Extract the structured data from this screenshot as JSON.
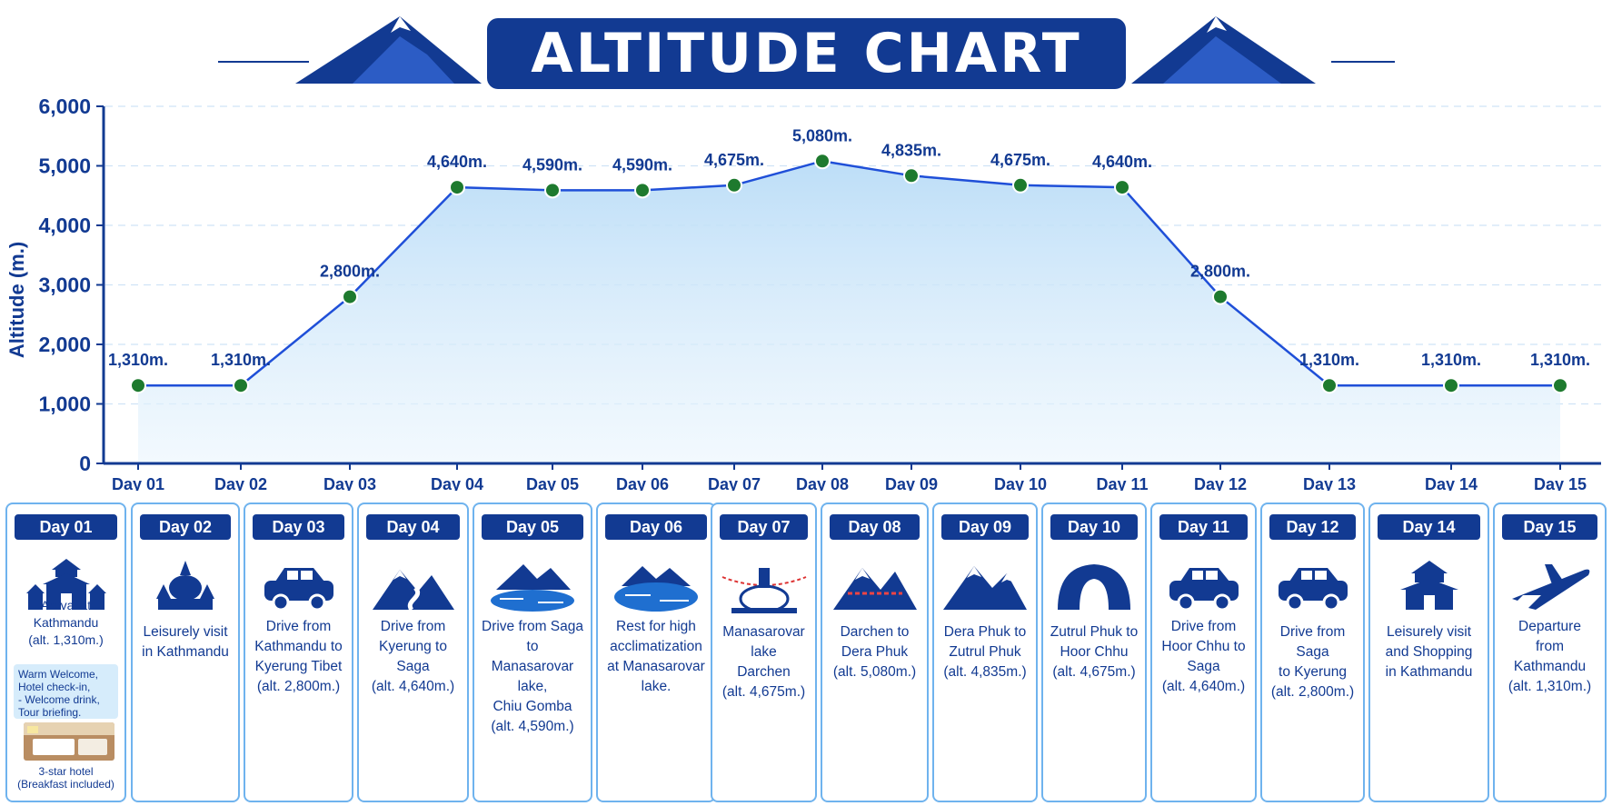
{
  "title": "ALTITUDE CHART",
  "colors": {
    "navy": "#123a92",
    "line": "#1f4fd8",
    "marker": "#1e7a2e",
    "fill": "#d7ecfb",
    "border": "#6fb3ee"
  },
  "chart_data": {
    "type": "line",
    "title": "ALTITUDE CHART",
    "xlabel": "",
    "ylabel": "Altitude (m.)",
    "ylim": [
      0,
      6000
    ],
    "yticks": [
      "0",
      "1,000",
      "2,000",
      "3,000",
      "4,000",
      "5,000",
      "6,000"
    ],
    "grid": "horizontal-dashed",
    "categories": [
      "Day 01",
      "Day 02",
      "Day 03",
      "Day 04",
      "Day 05",
      "Day 06",
      "Day 07",
      "Day 08",
      "Day 09",
      "Day 10",
      "Day 11",
      "Day 12",
      "Day 13",
      "Day 14",
      "Day 15"
    ],
    "values": [
      1310,
      1310,
      2800,
      4640,
      4590,
      4590,
      4675,
      5080,
      4835,
      4675,
      4640,
      2800,
      1310,
      1310,
      1310
    ],
    "data_labels": [
      "1,310m.",
      "1,310m.",
      "2,800m.",
      "4,640m.",
      "4,590m.",
      "4,590m.",
      "4,675m.",
      "5,080m.",
      "4,835m.",
      "4,675m.",
      "4,640m.",
      "2,800m.",
      "1,310m.",
      "1,310m.",
      "1,310m."
    ]
  },
  "days": [
    {
      "day": "Day 01",
      "icon": "kathmandu-temple-icon",
      "lines": [
        "Arrival at",
        "Kathmandu",
        "(alt. 1,310m.)"
      ],
      "notes": [
        "Warm Welcome,",
        "Hotel check-in,",
        "- Welcome drink,",
        "Tour briefing."
      ],
      "hotel_caption": [
        "3-star hotel",
        "(Breakfast included)"
      ]
    },
    {
      "day": "Day 02",
      "icon": "stupa-temple-icon",
      "lines": [
        "Leisurely visit",
        "in Kathmandu"
      ]
    },
    {
      "day": "Day 03",
      "icon": "car-icon",
      "lines": [
        "Drive from",
        "Kathmandu to",
        "Kyerung Tibet",
        "(alt. 2,800m.)"
      ]
    },
    {
      "day": "Day 04",
      "icon": "mountain-road-icon",
      "lines": [
        "Drive from",
        "Kyerung to",
        "Saga",
        "(alt. 4,640m.)"
      ]
    },
    {
      "day": "Day 05",
      "icon": "mountain-lake-icon",
      "lines": [
        "Drive from Saga to",
        "Manasarovar lake,",
        "Chiu Gomba",
        "(alt. 4,590m.)"
      ]
    },
    {
      "day": "Day 06",
      "icon": "lake-icon",
      "lines": [
        "Rest for high",
        "acclimatization",
        "at Manasarovar",
        "lake."
      ]
    },
    {
      "day": "Day 07",
      "icon": "stupa-flags-icon",
      "lines": [
        "Manasarovar lake",
        "Darchen",
        "(alt. 4,675m.)"
      ]
    },
    {
      "day": "Day 08",
      "icon": "mountain-flags-icon",
      "lines": [
        "Darchen to",
        "Dera Phuk",
        "(alt. 5,080m.)"
      ]
    },
    {
      "day": "Day 09",
      "icon": "mountain-icon",
      "lines": [
        "Dera Phuk to",
        "Zutrul Phuk",
        "(alt. 4,835m.)"
      ]
    },
    {
      "day": "Day 10",
      "icon": "cave-icon",
      "lines": [
        "Zutrul Phuk to",
        "Hoor Chhu",
        "(alt. 4,675m.)"
      ]
    },
    {
      "day": "Day 11",
      "icon": "car-icon",
      "lines": [
        "Drive from",
        "Hoor Chhu to",
        "Saga",
        "(alt. 4,640m.)"
      ]
    },
    {
      "day": "Day 12",
      "icon": "car-icon",
      "lines": [
        "Drive from Saga",
        "to Kyerung",
        "(alt. 2,800m.)"
      ]
    },
    {
      "day": "Day 14",
      "icon": "pagoda-icon",
      "lines": [
        "Leisurely visit",
        "and Shopping",
        "in Kathmandu"
      ]
    },
    {
      "day": "Day 15",
      "icon": "airplane-icon",
      "lines": [
        "Departure",
        "from",
        "Kathmandu",
        "(alt. 1,310m.)"
      ]
    }
  ]
}
